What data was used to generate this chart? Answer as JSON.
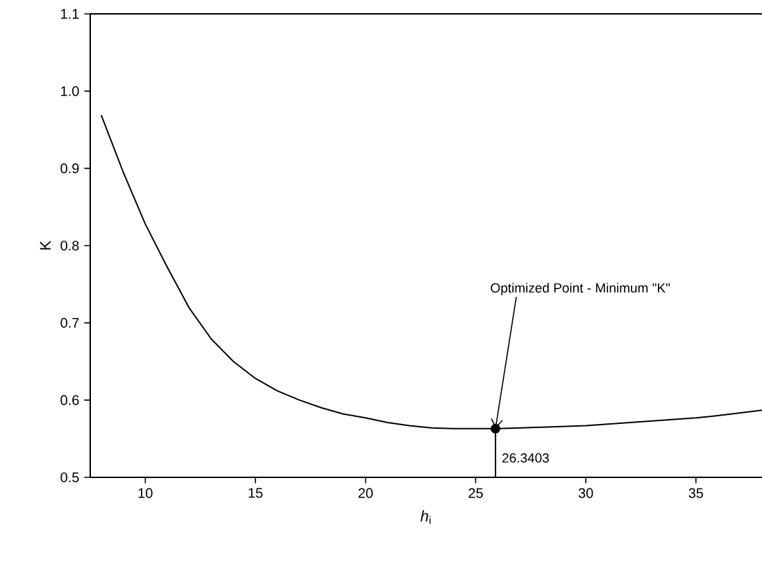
{
  "chart_data": {
    "type": "line",
    "xlabel": "*h*$_{i}$",
    "ylabel": "K",
    "xlim": [
      7.5,
      38
    ],
    "ylim": [
      0.5,
      1.1
    ],
    "xticks": [
      10,
      15,
      20,
      25,
      30,
      35
    ],
    "yticks": [
      {
        "value": 0.5,
        "label": "0.5"
      },
      {
        "value": 0.6,
        "label": "0.6"
      },
      {
        "value": 0.7,
        "label": "0.7"
      },
      {
        "value": 0.8,
        "label": "0.8"
      },
      {
        "value": 0.9,
        "label": "0.9"
      },
      {
        "value": 1.0,
        "label": "1.0"
      },
      {
        "value": 1.1,
        "label": "1.1"
      }
    ],
    "series": [
      {
        "color": "#000000",
        "x": [
          8,
          9,
          10,
          11,
          12,
          13,
          14,
          15,
          16,
          17,
          18,
          19,
          20,
          21,
          22,
          23,
          24,
          25,
          26,
          27,
          28,
          30,
          32,
          34,
          35,
          36,
          38
        ],
        "values": [
          0.969,
          0.895,
          0.828,
          0.772,
          0.719,
          0.679,
          0.65,
          0.628,
          0.612,
          0.6,
          0.59,
          0.582,
          0.577,
          0.571,
          0.567,
          0.564,
          0.563,
          0.563,
          0.563,
          0.564,
          0.565,
          0.567,
          0.571,
          0.575,
          0.577,
          0.58,
          0.587
        ]
      },
      {
        "type": "line",
        "color": "#000000",
        "x": [
          25.9,
          25.9
        ],
        "values": [
          0.5,
          0.563
        ]
      },
      {
        "type": "scatter",
        "color": "#000000",
        "marker": "circle",
        "x": [
          25.9
        ],
        "values": [
          0.563
        ]
      }
    ],
    "annotations": [
      {
        "text": "Optimized Point - Minimum \"K\"",
        "x": 25.9,
        "y": 0.563
      },
      {
        "text": "26.3403",
        "x": 25.9,
        "y": 0.5
      }
    ]
  }
}
